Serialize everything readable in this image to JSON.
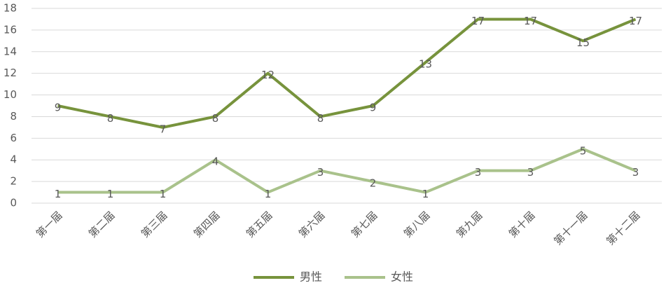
{
  "chart_data": {
    "type": "line",
    "categories": [
      "第一届",
      "第二届",
      "第三届",
      "第四届",
      "第五届",
      "第六届",
      "第七届",
      "第八届",
      "第九届",
      "第十届",
      "第十一届",
      "第十二届"
    ],
    "series": [
      {
        "name": "男性",
        "color": "#77933c",
        "values": [
          9,
          8,
          7,
          8,
          12,
          8,
          9,
          13,
          17,
          17,
          15,
          17
        ]
      },
      {
        "name": "女性",
        "color": "#a9c28b",
        "values": [
          1,
          1,
          1,
          4,
          1,
          3,
          2,
          1,
          3,
          3,
          5,
          3
        ]
      }
    ],
    "ylim": [
      0,
      18
    ],
    "yticks": [
      0,
      2,
      4,
      6,
      8,
      10,
      12,
      14,
      16,
      18
    ],
    "grid": true,
    "legend": "bottom"
  }
}
